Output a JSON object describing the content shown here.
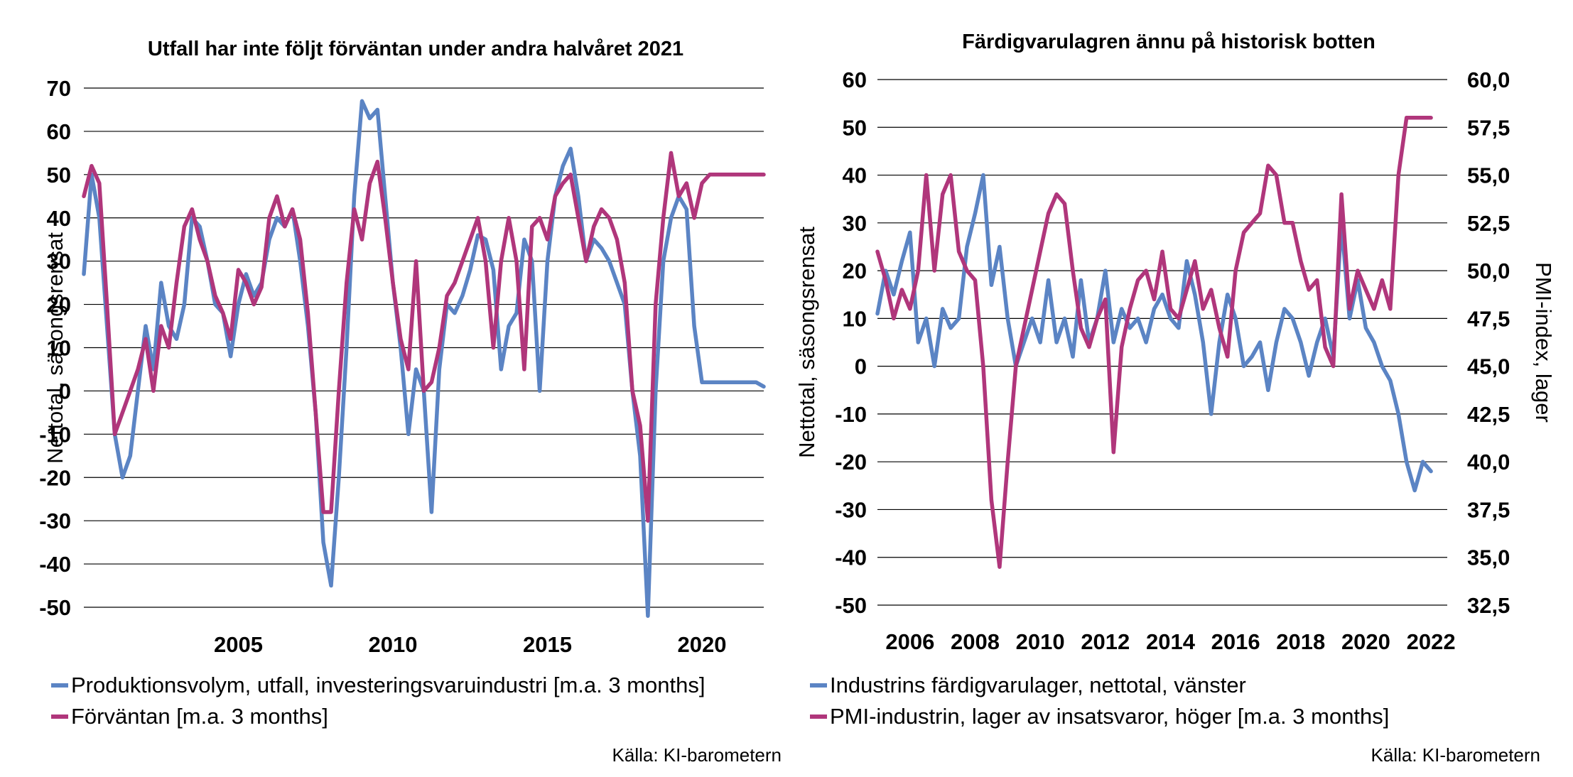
{
  "colors": {
    "blue": "#5b84c4",
    "magenta": "#b0367b",
    "grid": "#000000"
  },
  "chart_data": [
    {
      "type": "line",
      "title": "Utfall har inte följt förväntan under andra halvåret 2021",
      "xlabel": "",
      "ylabel": "Nettotal, säsongsrensat",
      "ylim": [
        -50,
        70
      ],
      "yticks": [
        70,
        60,
        50,
        40,
        30,
        20,
        10,
        0,
        -10,
        -20,
        -30,
        -40,
        -50
      ],
      "xlim": [
        2000.0,
        2022.0
      ],
      "xticks": [
        "2005",
        "2010",
        "2015",
        "2020"
      ],
      "grid": "horizontal",
      "legend_position": "bottom",
      "source": "Källa: KI-barometern",
      "series": [
        {
          "name": "Produktionsvolym, utfall, investeringsvaruindustri [m.a. 3 months]",
          "color": "blue",
          "x": [
            2000.0,
            2000.25,
            2000.5,
            2000.75,
            2001.0,
            2001.25,
            2001.5,
            2001.75,
            2002.0,
            2002.25,
            2002.5,
            2002.75,
            2003.0,
            2003.25,
            2003.5,
            2003.75,
            2004.0,
            2004.25,
            2004.5,
            2004.75,
            2005.0,
            2005.25,
            2005.5,
            2005.75,
            2006.0,
            2006.25,
            2006.5,
            2006.75,
            2007.0,
            2007.25,
            2007.5,
            2007.75,
            2008.0,
            2008.25,
            2008.5,
            2008.75,
            2009.0,
            2009.25,
            2009.5,
            2009.75,
            2010.0,
            2010.25,
            2010.5,
            2010.75,
            2011.0,
            2011.25,
            2011.5,
            2011.75,
            2012.0,
            2012.25,
            2012.5,
            2012.75,
            2013.0,
            2013.25,
            2013.5,
            2013.75,
            2014.0,
            2014.25,
            2014.5,
            2014.75,
            2015.0,
            2015.25,
            2015.5,
            2015.75,
            2016.0,
            2016.25,
            2016.5,
            2016.75,
            2017.0,
            2017.25,
            2017.5,
            2017.75,
            2018.0,
            2018.25,
            2018.5,
            2018.75,
            2019.0,
            2019.25,
            2019.5,
            2019.75,
            2020.0,
            2020.25,
            2020.5,
            2020.75,
            2021.0,
            2021.25,
            2021.5,
            2021.75,
            2022.0
          ],
          "values": [
            27,
            50,
            40,
            15,
            -10,
            -20,
            -15,
            0,
            15,
            5,
            25,
            15,
            12,
            20,
            40,
            38,
            30,
            20,
            18,
            8,
            20,
            27,
            22,
            25,
            35,
            40,
            38,
            42,
            30,
            15,
            -5,
            -35,
            -45,
            -20,
            10,
            45,
            67,
            63,
            65,
            45,
            25,
            10,
            -10,
            5,
            0,
            -28,
            5,
            20,
            18,
            22,
            28,
            36,
            35,
            28,
            5,
            15,
            18,
            35,
            30,
            0,
            30,
            45,
            52,
            56,
            45,
            30,
            35,
            33,
            30,
            25,
            20,
            0,
            -15,
            -52,
            0,
            30,
            40,
            45,
            42,
            15,
            2,
            2,
            2,
            2,
            2,
            2,
            2,
            2,
            1
          ]
        },
        {
          "name": "Förväntan [m.a. 3 months]",
          "color": "magenta",
          "x": [
            2000.0,
            2000.25,
            2000.5,
            2000.75,
            2001.0,
            2001.25,
            2001.5,
            2001.75,
            2002.0,
            2002.25,
            2002.5,
            2002.75,
            2003.0,
            2003.25,
            2003.5,
            2003.75,
            2004.0,
            2004.25,
            2004.5,
            2004.75,
            2005.0,
            2005.25,
            2005.5,
            2005.75,
            2006.0,
            2006.25,
            2006.5,
            2006.75,
            2007.0,
            2007.25,
            2007.5,
            2007.75,
            2008.0,
            2008.25,
            2008.5,
            2008.75,
            2009.0,
            2009.25,
            2009.5,
            2009.75,
            2010.0,
            2010.25,
            2010.5,
            2010.75,
            2011.0,
            2011.25,
            2011.5,
            2011.75,
            2012.0,
            2012.25,
            2012.5,
            2012.75,
            2013.0,
            2013.25,
            2013.5,
            2013.75,
            2014.0,
            2014.25,
            2014.5,
            2014.75,
            2015.0,
            2015.25,
            2015.5,
            2015.75,
            2016.0,
            2016.25,
            2016.5,
            2016.75,
            2017.0,
            2017.25,
            2017.5,
            2017.75,
            2018.0,
            2018.25,
            2018.5,
            2018.75,
            2019.0,
            2019.25,
            2019.5,
            2019.75,
            2020.0,
            2020.25,
            2020.5,
            2020.75,
            2021.0,
            2021.25,
            2021.5,
            2021.75,
            2022.0
          ],
          "values": [
            45,
            52,
            48,
            20,
            -10,
            -5,
            0,
            5,
            12,
            0,
            15,
            10,
            25,
            38,
            42,
            35,
            30,
            22,
            18,
            12,
            28,
            25,
            20,
            24,
            40,
            45,
            38,
            42,
            35,
            18,
            -5,
            -28,
            -28,
            0,
            25,
            42,
            35,
            48,
            53,
            40,
            25,
            12,
            5,
            30,
            0,
            2,
            10,
            22,
            25,
            30,
            35,
            40,
            30,
            10,
            30,
            40,
            30,
            5,
            38,
            40,
            35,
            45,
            48,
            50,
            40,
            30,
            38,
            42,
            40,
            35,
            25,
            0,
            -8,
            -30,
            20,
            40,
            55,
            45,
            48,
            40,
            48,
            50,
            50,
            50,
            50,
            50,
            50,
            50,
            50
          ]
        }
      ]
    },
    {
      "type": "line",
      "title": "Färdigvarulagren ännu på historisk botten",
      "xlabel": "",
      "ylabel": "Nettotal, säsongsrensat",
      "ylabel_right": "PMI-index, lager",
      "ylim": [
        -50,
        60
      ],
      "yticks": [
        60,
        50,
        40,
        30,
        20,
        10,
        0,
        -10,
        -20,
        -30,
        -40,
        -50
      ],
      "ylim_right": [
        32.5,
        60.0
      ],
      "yticks_right": [
        "60,0",
        "57,5",
        "55,0",
        "52,5",
        "50,0",
        "47,5",
        "45,0",
        "42,5",
        "40,0",
        "37,5",
        "35,0",
        "32,5"
      ],
      "xlim": [
        2005.0,
        2022.5
      ],
      "xticks": [
        "2006",
        "2008",
        "2010",
        "2012",
        "2014",
        "2016",
        "2018",
        "2020",
        "2022"
      ],
      "grid": "horizontal",
      "legend_position": "bottom",
      "source": "Källa: KI-barometern",
      "series": [
        {
          "name": "Industrins färdigvarulager, nettotal, vänster",
          "color": "blue",
          "axis": "left",
          "x": [
            2005.0,
            2005.25,
            2005.5,
            2005.75,
            2006.0,
            2006.25,
            2006.5,
            2006.75,
            2007.0,
            2007.25,
            2007.5,
            2007.75,
            2008.0,
            2008.25,
            2008.5,
            2008.75,
            2009.0,
            2009.25,
            2009.5,
            2009.75,
            2010.0,
            2010.25,
            2010.5,
            2010.75,
            2011.0,
            2011.25,
            2011.5,
            2011.75,
            2012.0,
            2012.25,
            2012.5,
            2012.75,
            2013.0,
            2013.25,
            2013.5,
            2013.75,
            2014.0,
            2014.25,
            2014.5,
            2014.75,
            2015.0,
            2015.25,
            2015.5,
            2015.75,
            2016.0,
            2016.25,
            2016.5,
            2016.75,
            2017.0,
            2017.25,
            2017.5,
            2017.75,
            2018.0,
            2018.25,
            2018.5,
            2018.75,
            2019.0,
            2019.25,
            2019.5,
            2019.75,
            2020.0,
            2020.25,
            2020.5,
            2020.75,
            2021.0,
            2021.25,
            2021.5,
            2021.75,
            2022.0
          ],
          "values": [
            11,
            20,
            15,
            22,
            28,
            5,
            10,
            0,
            12,
            8,
            10,
            25,
            32,
            40,
            17,
            25,
            10,
            0,
            5,
            10,
            5,
            18,
            5,
            10,
            2,
            18,
            5,
            10,
            20,
            5,
            12,
            8,
            10,
            5,
            12,
            15,
            10,
            8,
            22,
            15,
            5,
            -10,
            5,
            15,
            10,
            0,
            2,
            5,
            -5,
            5,
            12,
            10,
            5,
            -2,
            5,
            10,
            2,
            30,
            10,
            18,
            8,
            5,
            0,
            -3,
            -10,
            -20,
            -26,
            -20,
            -22
          ]
        },
        {
          "name": "PMI-industrin, lager av insatsvaror, höger [m.a. 3 months]",
          "color": "magenta",
          "axis": "right",
          "x": [
            2005.0,
            2005.25,
            2005.5,
            2005.75,
            2006.0,
            2006.25,
            2006.5,
            2006.75,
            2007.0,
            2007.25,
            2007.5,
            2007.75,
            2008.0,
            2008.25,
            2008.5,
            2008.75,
            2009.0,
            2009.25,
            2009.5,
            2009.75,
            2010.0,
            2010.25,
            2010.5,
            2010.75,
            2011.0,
            2011.25,
            2011.5,
            2011.75,
            2012.0,
            2012.25,
            2012.5,
            2012.75,
            2013.0,
            2013.25,
            2013.5,
            2013.75,
            2014.0,
            2014.25,
            2014.5,
            2014.75,
            2015.0,
            2015.25,
            2015.5,
            2015.75,
            2016.0,
            2016.25,
            2016.5,
            2016.75,
            2017.0,
            2017.25,
            2017.5,
            2017.75,
            2018.0,
            2018.25,
            2018.5,
            2018.75,
            2019.0,
            2019.25,
            2019.5,
            2019.75,
            2020.0,
            2020.25,
            2020.5,
            2020.75,
            2021.0,
            2021.25,
            2021.5,
            2021.75,
            2022.0
          ],
          "values": [
            51.0,
            49.5,
            47.5,
            49.0,
            48.0,
            50.0,
            55.0,
            50.0,
            54.0,
            55.0,
            51.0,
            50.0,
            49.5,
            45.0,
            38.0,
            34.5,
            40.0,
            45.0,
            47.0,
            49.0,
            51.0,
            53.0,
            54.0,
            53.5,
            50.0,
            47.0,
            46.0,
            47.5,
            48.5,
            40.5,
            46.0,
            48.0,
            49.5,
            50.0,
            48.5,
            51.0,
            48.0,
            47.5,
            49.0,
            50.5,
            48.0,
            49.0,
            47.0,
            45.5,
            50.0,
            52.0,
            52.5,
            53.0,
            55.5,
            55.0,
            52.5,
            52.5,
            50.5,
            49.0,
            49.5,
            46.0,
            45.0,
            54.0,
            48.0,
            50.0,
            49.0,
            48.0,
            49.5,
            48.0,
            55.0,
            58.0,
            58.0,
            58.0,
            58.0
          ]
        }
      ]
    }
  ]
}
